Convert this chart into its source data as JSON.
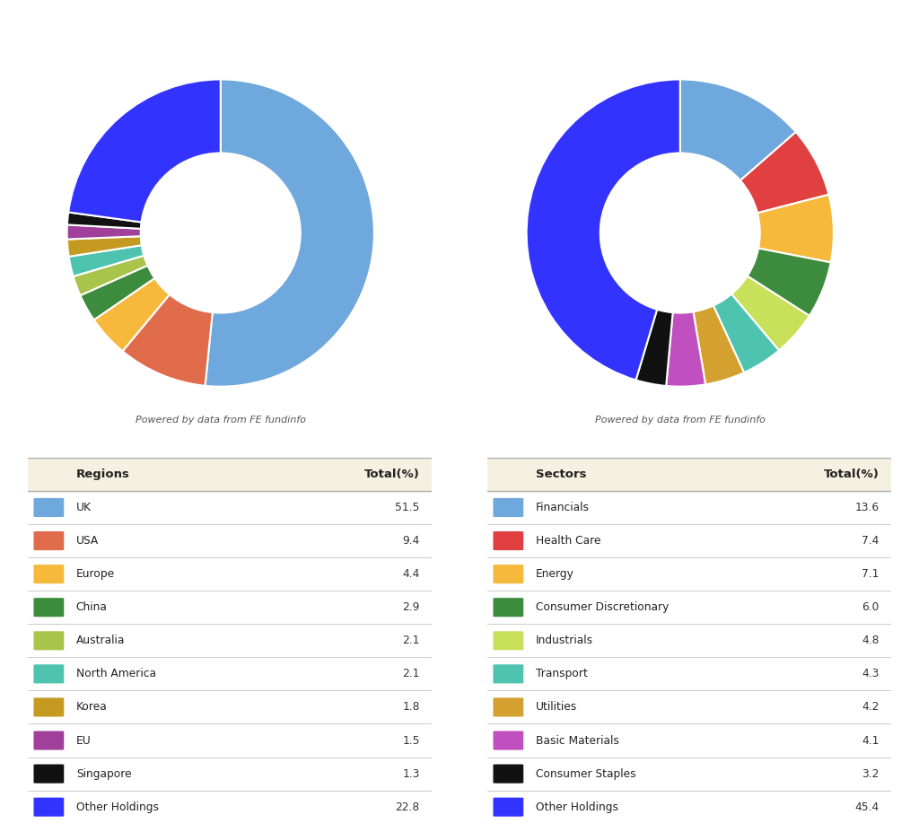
{
  "regions": {
    "labels": [
      "UK",
      "USA",
      "Europe",
      "China",
      "Australia",
      "North America",
      "Korea",
      "EU",
      "Singapore",
      "Other Holdings"
    ],
    "values": [
      51.5,
      9.4,
      4.4,
      2.9,
      2.1,
      2.1,
      1.8,
      1.5,
      1.3,
      22.8
    ],
    "colors": [
      "#6fa8dc",
      "#e06c4c",
      "#f6b93b",
      "#3d8b3d",
      "#a8c44a",
      "#4dc3b0",
      "#c49a20",
      "#a0409a",
      "#111111",
      "#3333ff"
    ]
  },
  "sectors": {
    "labels": [
      "Financials",
      "Health Care",
      "Energy",
      "Consumer Discretionary",
      "Industrials",
      "Transport",
      "Utilities",
      "Basic Materials",
      "Consumer Staples",
      "Other Holdings"
    ],
    "values": [
      13.6,
      7.4,
      7.1,
      6.0,
      4.8,
      4.3,
      4.2,
      4.1,
      3.2,
      45.4
    ],
    "colors": [
      "#6fa8dc",
      "#e04040",
      "#f6b93b",
      "#3d8b3d",
      "#c8e05a",
      "#4dc3b0",
      "#d4a030",
      "#c050c0",
      "#111111",
      "#3333ff"
    ]
  },
  "powered_by_text": "Powered by data from FE fundinfo",
  "table_header_bg": "#f5f0e0",
  "table_row_separator": "#cccccc",
  "background_color": "#ffffff",
  "font_color": "#333333"
}
